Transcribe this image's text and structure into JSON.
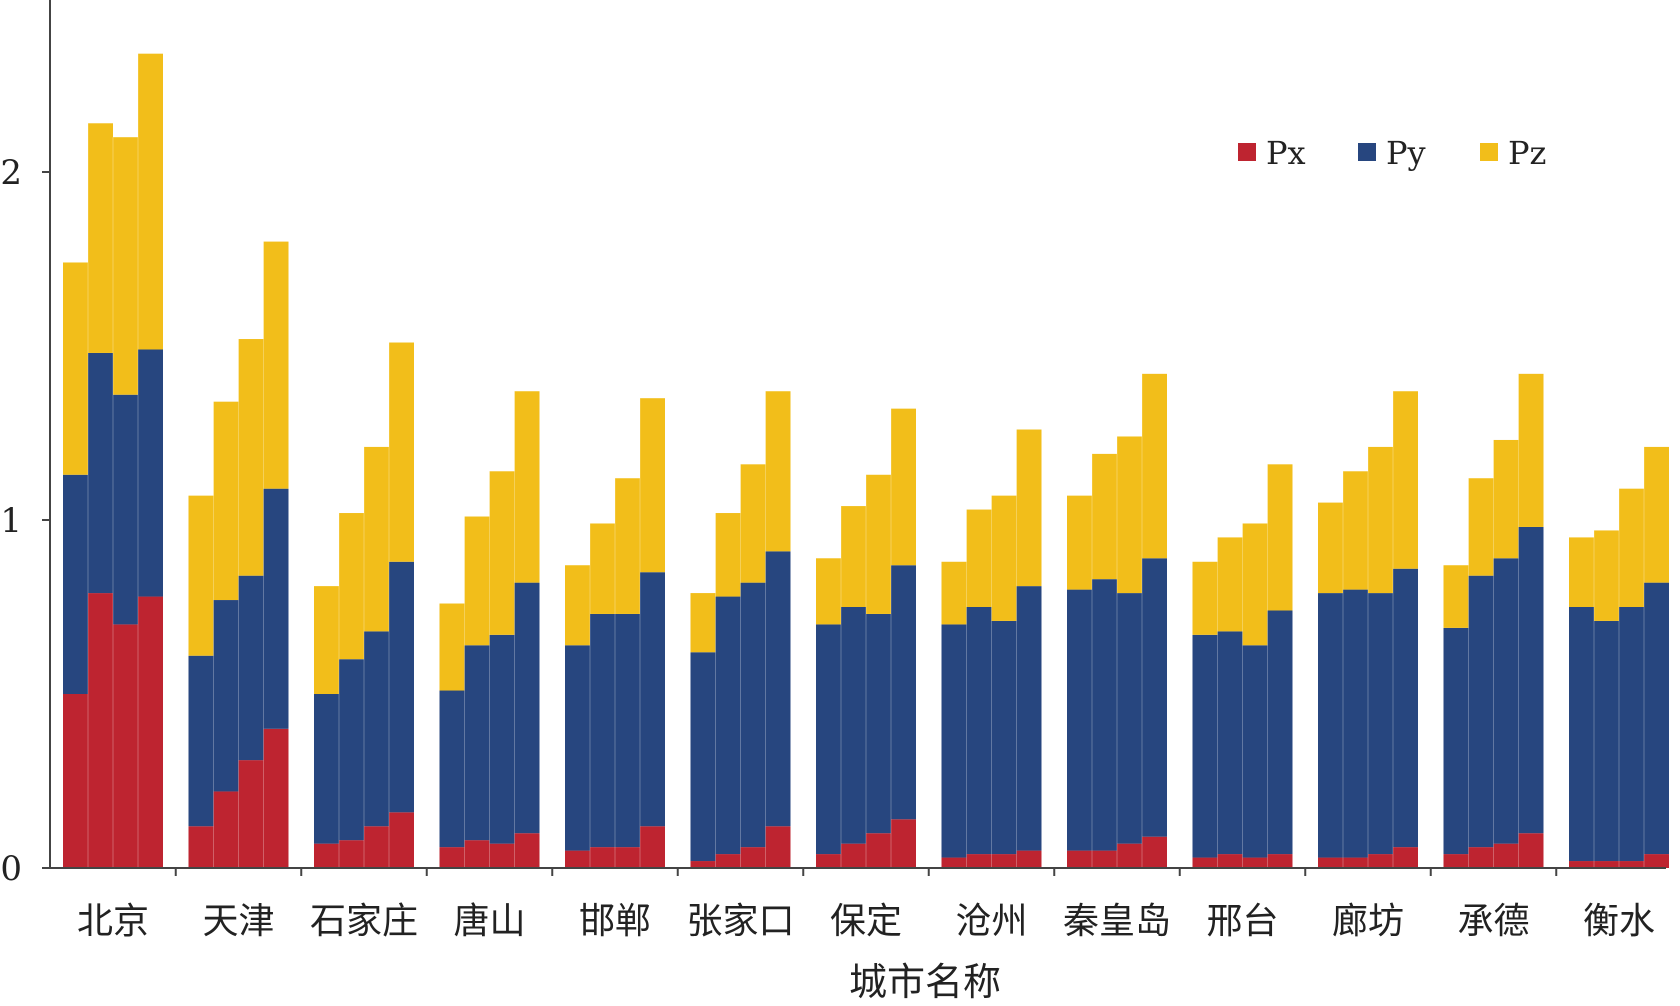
{
  "chart_data": {
    "type": "bar",
    "stacked": true,
    "xlabel": "城市名称",
    "ylabel": "",
    "ylim": [
      0,
      2.4
    ],
    "yticks": [
      0,
      1,
      2
    ],
    "bars_per_category": 4,
    "legend": {
      "position": "top-right",
      "entries": [
        "Px",
        "Py",
        "Pz"
      ]
    },
    "colors": {
      "Px": "#be2430",
      "Py": "#27467f",
      "Pz": "#f2be1a"
    },
    "categories": [
      "北京",
      "天津",
      "石家庄",
      "唐山",
      "邯郸",
      "张家口",
      "保定",
      "沧州",
      "秦皇岛",
      "邢台",
      "廊坊",
      "承德",
      "衡水"
    ],
    "series": [
      {
        "name": "Px",
        "values": [
          [
            0.5,
            0.79,
            0.7,
            0.78
          ],
          [
            0.12,
            0.22,
            0.31,
            0.4
          ],
          [
            0.07,
            0.08,
            0.12,
            0.16
          ],
          [
            0.06,
            0.08,
            0.07,
            0.1
          ],
          [
            0.05,
            0.06,
            0.06,
            0.12
          ],
          [
            0.02,
            0.04,
            0.06,
            0.12
          ],
          [
            0.04,
            0.07,
            0.1,
            0.14
          ],
          [
            0.03,
            0.04,
            0.04,
            0.05
          ],
          [
            0.05,
            0.05,
            0.07,
            0.09
          ],
          [
            0.03,
            0.04,
            0.03,
            0.04
          ],
          [
            0.03,
            0.03,
            0.04,
            0.06
          ],
          [
            0.04,
            0.06,
            0.07,
            0.1
          ],
          [
            0.02,
            0.02,
            0.02,
            0.04
          ]
        ]
      },
      {
        "name": "Py",
        "values": [
          [
            0.63,
            0.69,
            0.66,
            0.71
          ],
          [
            0.49,
            0.55,
            0.53,
            0.69
          ],
          [
            0.43,
            0.52,
            0.56,
            0.72
          ],
          [
            0.45,
            0.56,
            0.6,
            0.72
          ],
          [
            0.59,
            0.67,
            0.67,
            0.73
          ],
          [
            0.6,
            0.74,
            0.76,
            0.79
          ],
          [
            0.66,
            0.68,
            0.63,
            0.73
          ],
          [
            0.67,
            0.71,
            0.67,
            0.76
          ],
          [
            0.75,
            0.78,
            0.72,
            0.8
          ],
          [
            0.64,
            0.64,
            0.61,
            0.7
          ],
          [
            0.76,
            0.77,
            0.75,
            0.8
          ],
          [
            0.65,
            0.78,
            0.82,
            0.88
          ],
          [
            0.73,
            0.69,
            0.73,
            0.78
          ]
        ]
      },
      {
        "name": "Pz",
        "values": [
          [
            0.61,
            0.66,
            0.74,
            0.85
          ],
          [
            0.46,
            0.57,
            0.68,
            0.71
          ],
          [
            0.31,
            0.42,
            0.53,
            0.63
          ],
          [
            0.25,
            0.37,
            0.47,
            0.55
          ],
          [
            0.23,
            0.26,
            0.39,
            0.5
          ],
          [
            0.17,
            0.24,
            0.34,
            0.46
          ],
          [
            0.19,
            0.29,
            0.4,
            0.45
          ],
          [
            0.18,
            0.28,
            0.36,
            0.45
          ],
          [
            0.27,
            0.36,
            0.45,
            0.53
          ],
          [
            0.21,
            0.27,
            0.35,
            0.42
          ],
          [
            0.26,
            0.34,
            0.42,
            0.51
          ],
          [
            0.18,
            0.28,
            0.34,
            0.44
          ],
          [
            0.2,
            0.26,
            0.34,
            0.39
          ]
        ]
      }
    ]
  }
}
